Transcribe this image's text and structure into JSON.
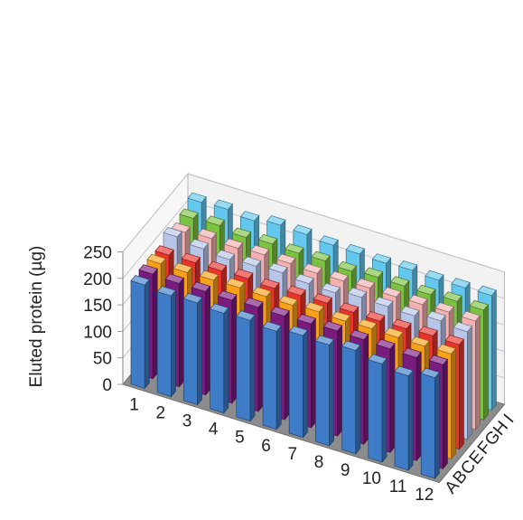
{
  "chart_data": {
    "type": "bar",
    "subtype": "3d-bar-grid",
    "ylabel": "Eluted protein (µg)",
    "xlabel": "",
    "zlabel": "",
    "ylim": [
      0,
      250
    ],
    "yticks": [
      0,
      50,
      100,
      150,
      200,
      250
    ],
    "columns": [
      "1",
      "2",
      "3",
      "4",
      "5",
      "6",
      "7",
      "8",
      "9",
      "10",
      "11",
      "12"
    ],
    "rows": [
      "A",
      "B",
      "C",
      "E",
      "F",
      "G",
      "H",
      "I"
    ],
    "grid": true,
    "series": [
      {
        "name": "A",
        "color": "#3e7cc7",
        "values": [
          195,
          190,
          192,
          188,
          190,
          185,
          192,
          190,
          195,
          185,
          178,
          190
        ]
      },
      {
        "name": "B",
        "color": "#7a1b7e",
        "values": [
          197,
          195,
          195,
          194,
          196,
          195,
          196,
          198,
          197,
          195,
          194,
          196
        ]
      },
      {
        "name": "C",
        "color": "#f7a11a",
        "values": [
          198,
          197,
          198,
          199,
          198,
          197,
          200,
          198,
          199,
          198,
          197,
          198
        ]
      },
      {
        "name": "E",
        "color": "#e8342c",
        "values": [
          196,
          197,
          197,
          198,
          195,
          197,
          198,
          196,
          195,
          196,
          198,
          197
        ]
      },
      {
        "name": "F",
        "color": "#b7c5e8",
        "values": [
          212,
          205,
          200,
          203,
          206,
          201,
          199,
          206,
          204,
          202,
          208,
          203
        ]
      },
      {
        "name": "G",
        "color": "#f2b0b0",
        "values": [
          202,
          206,
          203,
          206,
          205,
          202,
          203,
          205,
          204,
          205,
          206,
          205
        ]
      },
      {
        "name": "H",
        "color": "#7cc242",
        "values": [
          210,
          212,
          205,
          208,
          206,
          207,
          203,
          207,
          206,
          205,
          208,
          207
        ]
      },
      {
        "name": "I",
        "color": "#63c7ee",
        "values": [
          222,
          224,
          218,
          225,
          223,
          218,
          217,
          215,
          217,
          214,
          215,
          216
        ]
      }
    ]
  }
}
